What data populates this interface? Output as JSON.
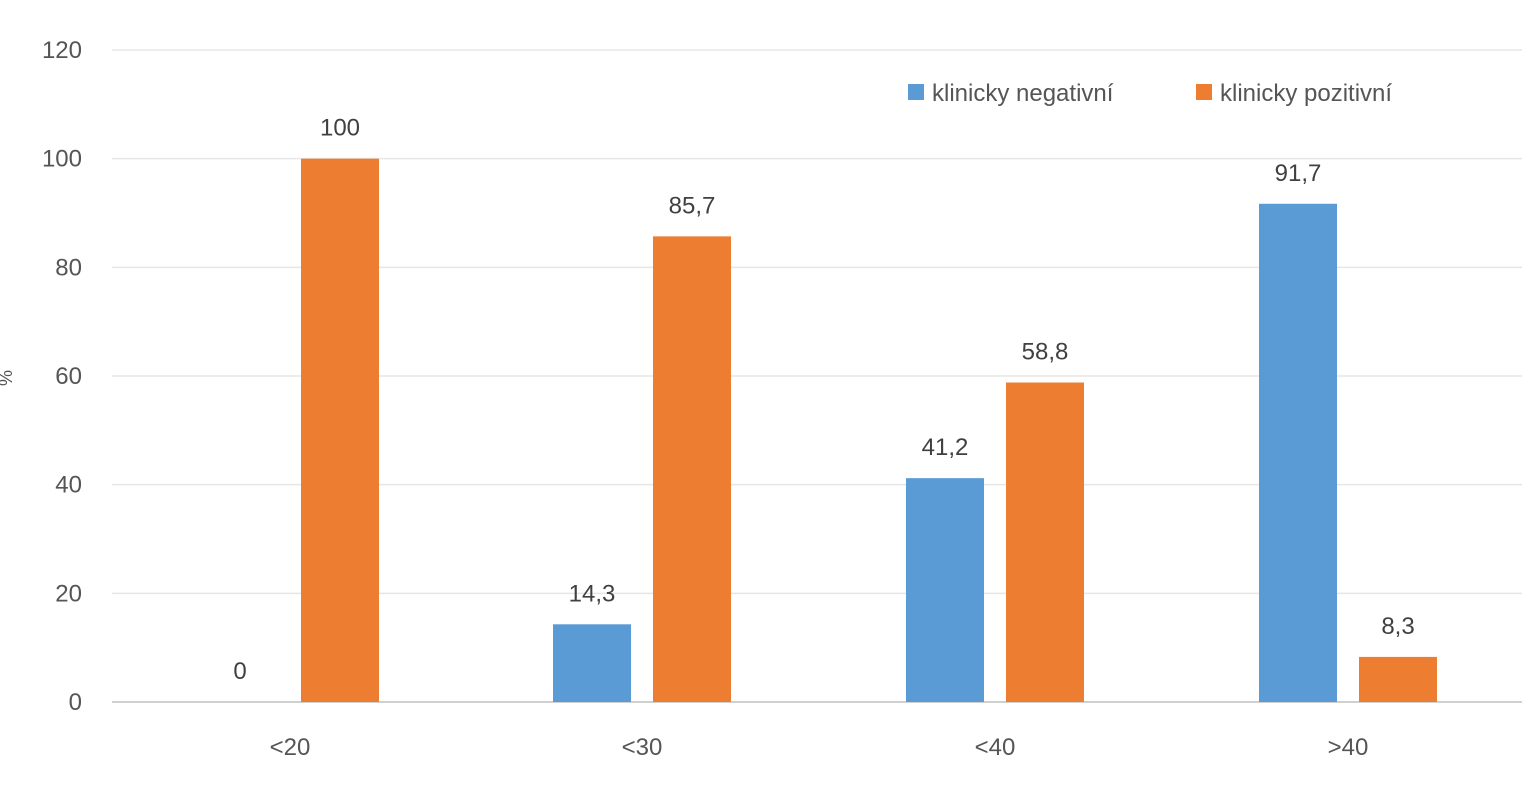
{
  "chart_data": {
    "type": "bar",
    "title": "",
    "xlabel": "",
    "ylabel": "%",
    "ylim": [
      0,
      120
    ],
    "yticks": [
      0,
      20,
      40,
      60,
      80,
      100,
      120
    ],
    "grid": true,
    "legend_position": "top-right",
    "categories": [
      "<20",
      "<30",
      "<40",
      ">40"
    ],
    "series": [
      {
        "name": "klinicky negativní",
        "color": "#5B9BD5",
        "values": [
          0,
          14.3,
          41.2,
          91.7
        ],
        "labels": [
          "0",
          "14,3",
          "41,2",
          "91,7"
        ]
      },
      {
        "name": "klinicky pozitivní",
        "color": "#ED7D31",
        "values": [
          100,
          85.7,
          58.8,
          8.3
        ],
        "labels": [
          "100",
          "85,7",
          "58,8",
          "8,3"
        ]
      }
    ]
  }
}
